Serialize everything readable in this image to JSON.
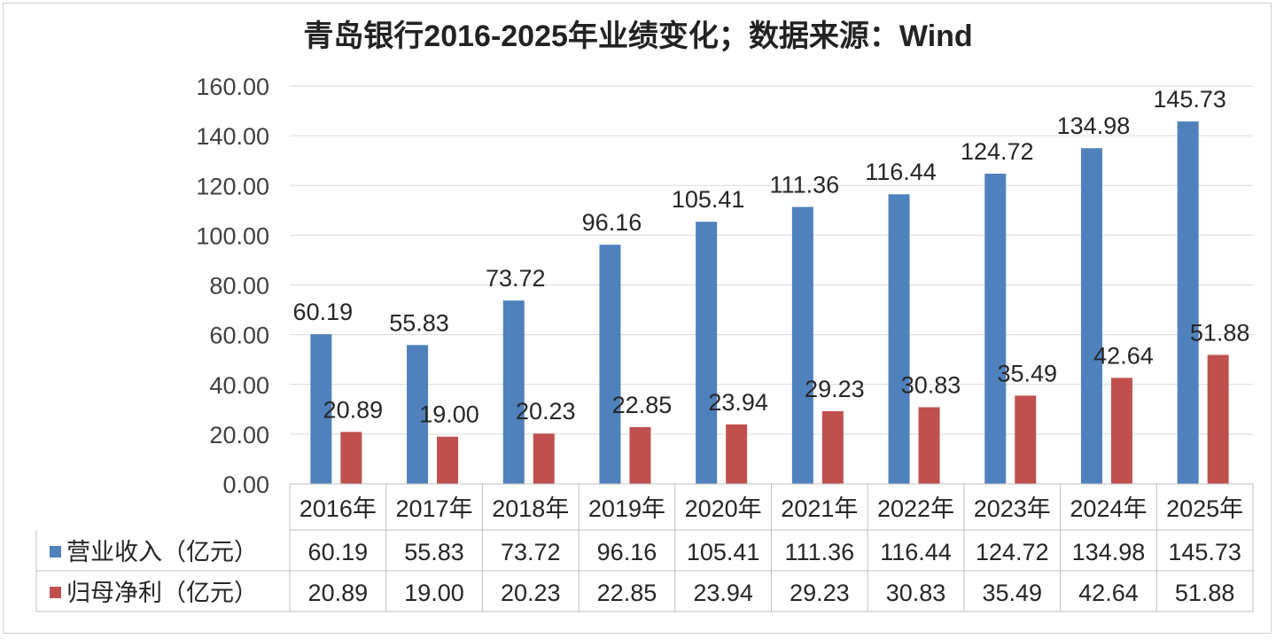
{
  "chart_data": {
    "type": "bar",
    "title": "青岛银行2016-2025年业绩变化；数据来源：Wind",
    "categories": [
      "2016年",
      "2017年",
      "2018年",
      "2019年",
      "2020年",
      "2021年",
      "2022年",
      "2023年",
      "2024年",
      "2025年"
    ],
    "series": [
      {
        "name": "营业收入（亿元）",
        "color": "#4F81BD",
        "values": [
          60.19,
          55.83,
          73.72,
          96.16,
          105.41,
          111.36,
          116.44,
          124.72,
          134.98,
          145.73
        ],
        "labels": [
          "60.19",
          "55.83",
          "73.72",
          "96.16",
          "105.41",
          "111.36",
          "116.44",
          "124.72",
          "134.98",
          "145.73"
        ]
      },
      {
        "name": "归母净利（亿元）",
        "color": "#C0504D",
        "values": [
          20.89,
          19.0,
          20.23,
          22.85,
          23.94,
          29.23,
          30.83,
          35.49,
          42.64,
          51.88
        ],
        "labels": [
          "20.89",
          "19.00",
          "20.23",
          "22.85",
          "23.94",
          "29.23",
          "30.83",
          "35.49",
          "42.64",
          "51.88"
        ]
      }
    ],
    "yticks": [
      "0.00",
      "20.00",
      "40.00",
      "60.00",
      "80.00",
      "100.00",
      "120.00",
      "140.00",
      "160.00"
    ],
    "ylim": [
      0,
      160
    ],
    "grid": true,
    "legend": "data-table"
  }
}
